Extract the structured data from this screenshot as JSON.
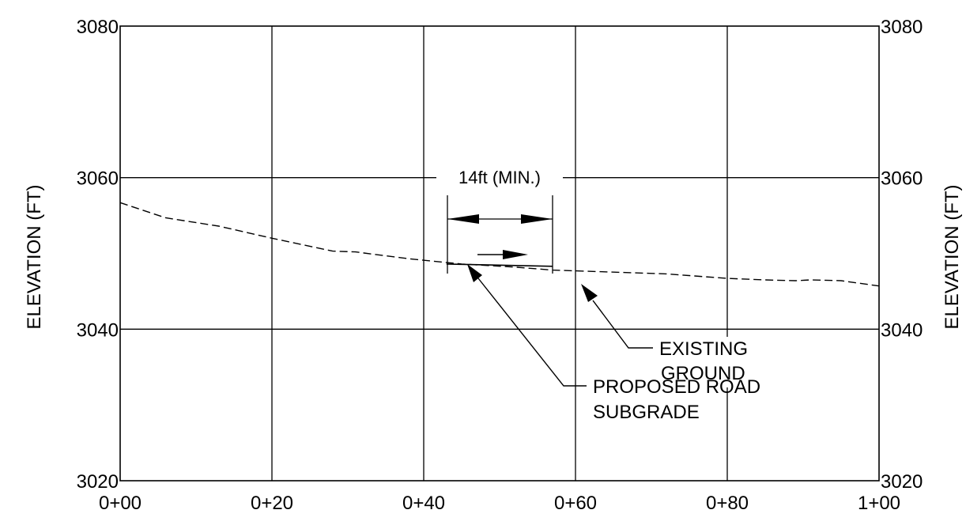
{
  "chart_data": {
    "type": "line",
    "title": "",
    "ylabel_left": "ELEVATION (FT)",
    "ylabel_right": "ELEVATION (FT)",
    "xlim": [
      0,
      100
    ],
    "ylim": [
      3020,
      3080
    ],
    "grid": true,
    "x_ticks": [
      {
        "value": 0,
        "label": "0+00"
      },
      {
        "value": 20,
        "label": "0+20"
      },
      {
        "value": 40,
        "label": "0+40"
      },
      {
        "value": 60,
        "label": "0+60"
      },
      {
        "value": 80,
        "label": "0+80"
      },
      {
        "value": 100,
        "label": "1+00"
      }
    ],
    "y_ticks": [
      {
        "value": 3020,
        "label": "3020"
      },
      {
        "value": 3040,
        "label": "3040"
      },
      {
        "value": 3060,
        "label": "3060"
      },
      {
        "value": 3080,
        "label": "3080"
      }
    ],
    "existing_ground": {
      "label_line1": "EXISTING",
      "label_line2": "GROUND",
      "x": [
        0,
        6,
        13,
        20,
        28,
        31,
        38,
        45,
        52,
        57,
        63,
        72,
        80,
        85,
        89,
        91,
        95,
        100
      ],
      "y": [
        3056.7,
        3054.7,
        3053.6,
        3052.0,
        3050.3,
        3050.2,
        3049.3,
        3048.6,
        3048.2,
        3047.8,
        3047.6,
        3047.3,
        3046.7,
        3046.5,
        3046.4,
        3046.5,
        3046.4,
        3045.7
      ]
    },
    "proposed_subgrade": {
      "label_line1": "PROPOSED ROAD",
      "label_line2": "SUBGRADE",
      "x_start": 43,
      "x_end": 57,
      "y_start": 3048.6,
      "y_end": 3048.3
    },
    "dimension_label": "14ft (MIN.)"
  }
}
